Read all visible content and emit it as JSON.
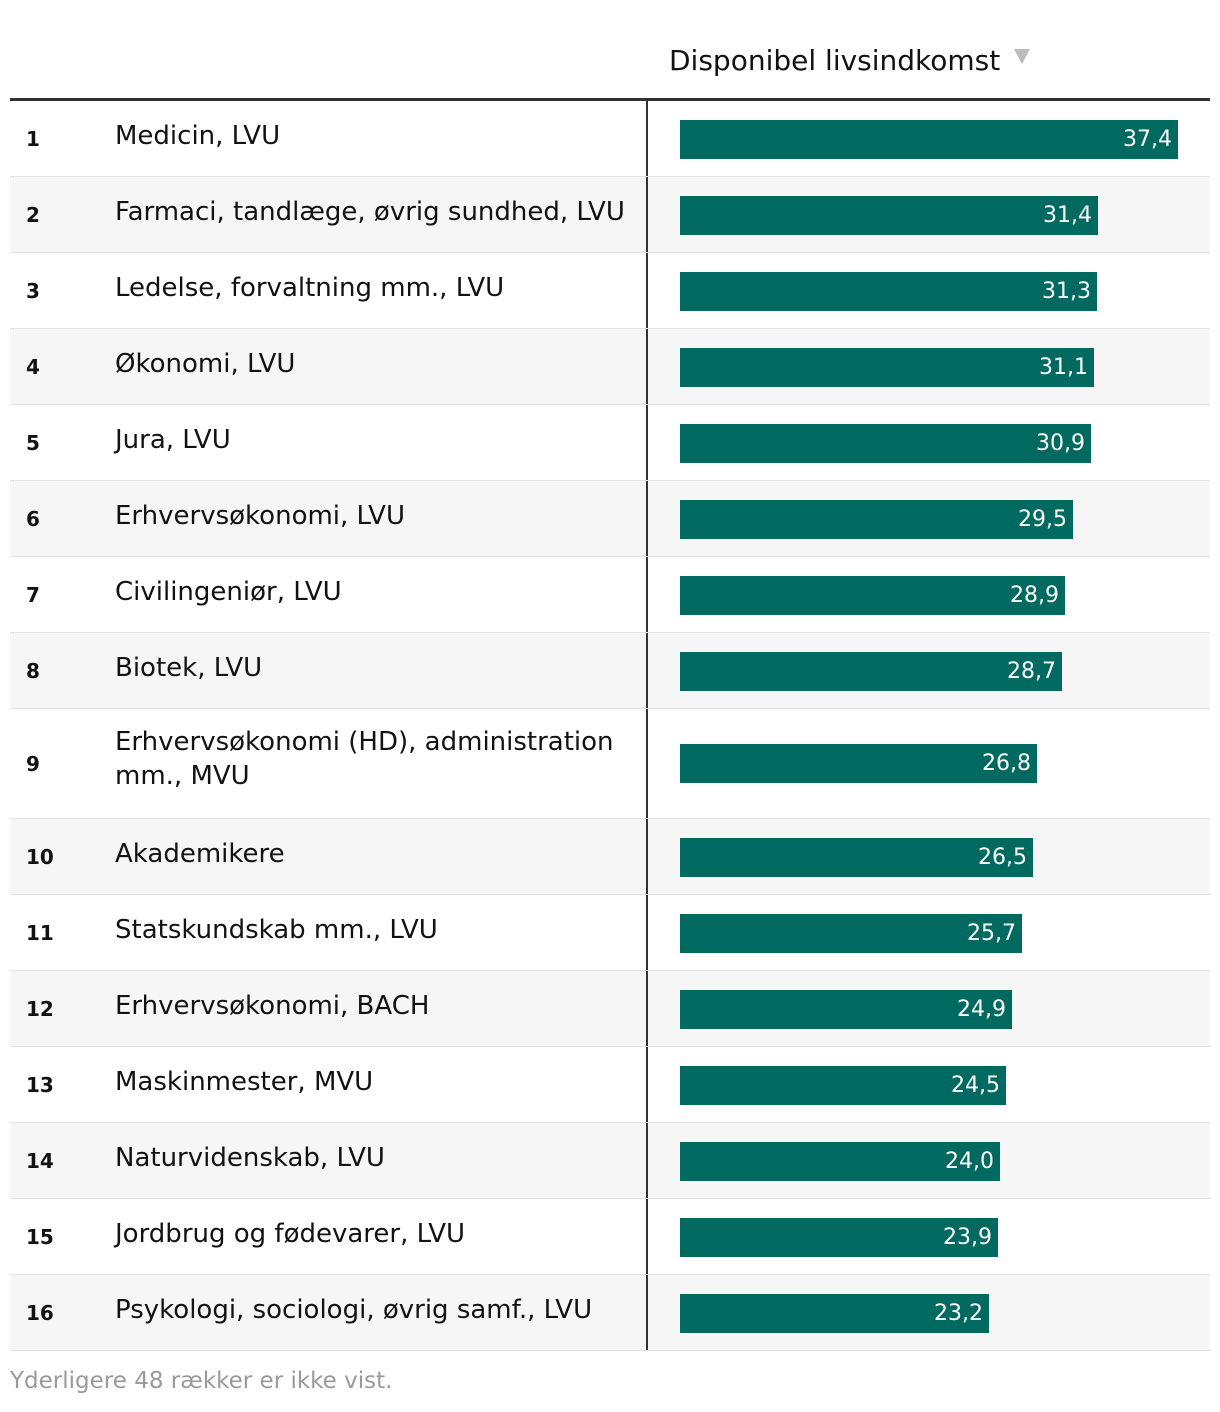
{
  "header": {
    "column_title": "Disponibel livsindkomst",
    "sort_icon": "sort-descending-icon"
  },
  "colors": {
    "bar": "#006a60",
    "row_alt": "#f6f6f6",
    "rule": "#333333"
  },
  "chart_data": {
    "type": "bar",
    "orientation": "horizontal",
    "title": "",
    "series": [
      {
        "name": "Disponibel livsindkomst",
        "values": [
          37.4,
          31.4,
          31.3,
          31.1,
          30.9,
          29.5,
          28.9,
          28.7,
          26.8,
          26.5,
          25.7,
          24.9,
          24.5,
          24.0,
          23.9,
          23.2
        ]
      }
    ],
    "xlim": [
      0,
      37.4
    ]
  },
  "rows": [
    {
      "rank": "1",
      "label": "Medicin, LVU",
      "value_label": "37,4"
    },
    {
      "rank": "2",
      "label": "Farmaci, tandlæge, øvrig sundhed, LVU",
      "value_label": "31,4"
    },
    {
      "rank": "3",
      "label": "Ledelse, forvaltning mm., LVU",
      "value_label": "31,3"
    },
    {
      "rank": "4",
      "label": "Økonomi, LVU",
      "value_label": "31,1"
    },
    {
      "rank": "5",
      "label": "Jura, LVU",
      "value_label": "30,9"
    },
    {
      "rank": "6",
      "label": "Erhvervsøkonomi, LVU",
      "value_label": "29,5"
    },
    {
      "rank": "7",
      "label": "Civilingeniør, LVU",
      "value_label": "28,9"
    },
    {
      "rank": "8",
      "label": "Biotek, LVU",
      "value_label": "28,7"
    },
    {
      "rank": "9",
      "label": "Erhvervsøkonomi (HD), administration mm., MVU",
      "value_label": "26,8"
    },
    {
      "rank": "10",
      "label": "Akademikere",
      "value_label": "26,5"
    },
    {
      "rank": "11",
      "label": "Statskundskab mm., LVU",
      "value_label": "25,7"
    },
    {
      "rank": "12",
      "label": "Erhvervsøkonomi, BACH",
      "value_label": "24,9"
    },
    {
      "rank": "13",
      "label": "Maskinmester, MVU",
      "value_label": "24,5"
    },
    {
      "rank": "14",
      "label": "Naturvidenskab, LVU",
      "value_label": "24,0"
    },
    {
      "rank": "15",
      "label": "Jordbrug og fødevarer, LVU",
      "value_label": "23,9"
    },
    {
      "rank": "16",
      "label": "Psykologi, sociologi, øvrig samf., LVU",
      "value_label": "23,2"
    }
  ],
  "footnote": "Yderligere 48 rækker er ikke vist."
}
